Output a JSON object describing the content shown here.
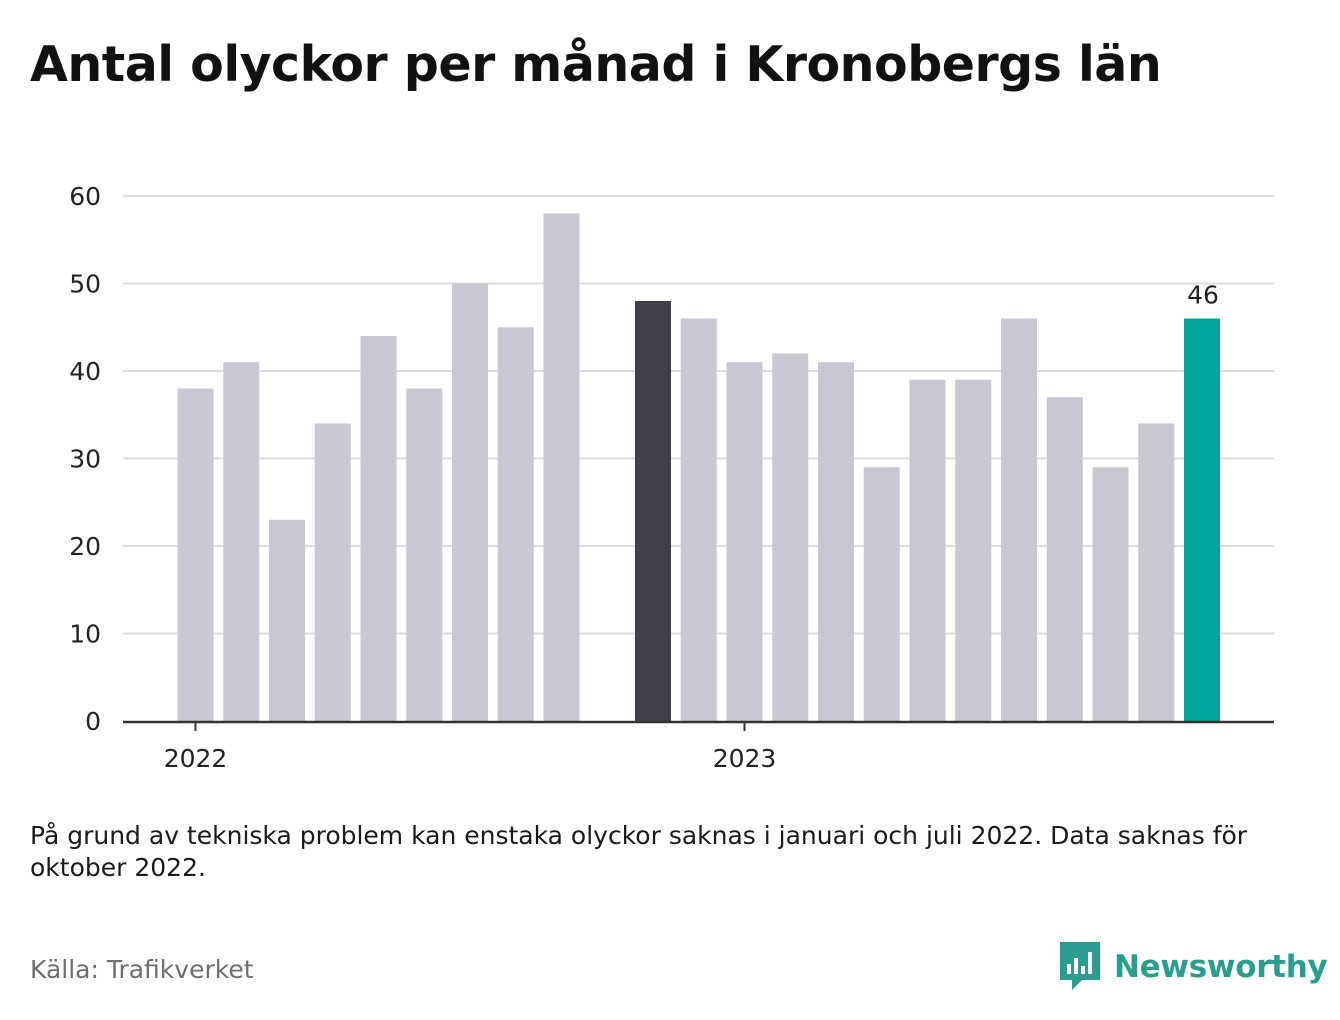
{
  "title": "Antal olyckor per månad i Kronobergs län",
  "note": "På grund av tekniska problem kan enstaka olyckor saknas i januari och juli 2022. Data saknas för oktober 2022.",
  "source": "Källa: Trafikverket",
  "brand": {
    "name": "Newsworthy",
    "icon": "newsworthy-logo-icon"
  },
  "colors": {
    "bar": "#c9c7d2",
    "highlight_previous_year": "#41404d",
    "highlight_latest": "#00a49a",
    "grid": "#dcdcdc",
    "axis": "#333333",
    "brand": "#2a9d8f"
  },
  "chart_data": {
    "type": "bar",
    "title": "Antal olyckor per månad i Kronobergs län",
    "categories": [
      "2022-01",
      "2022-02",
      "2022-03",
      "2022-04",
      "2022-05",
      "2022-06",
      "2022-07",
      "2022-08",
      "2022-09",
      "2022-10",
      "2022-11",
      "2022-12",
      "2023-01",
      "2023-02",
      "2023-03",
      "2023-04",
      "2023-05",
      "2023-06",
      "2023-07",
      "2023-08",
      "2023-09",
      "2023-10",
      "2023-11",
      "2023-12"
    ],
    "values": [
      38,
      41,
      23,
      34,
      44,
      38,
      50,
      45,
      58,
      null,
      48,
      46,
      41,
      42,
      41,
      29,
      39,
      39,
      46,
      37,
      29,
      34,
      46,
      null
    ],
    "highlight": {
      "previous_year_same_month_index": 10,
      "latest_index": 22
    },
    "data_labels": [
      {
        "index": 22,
        "text": "46"
      }
    ],
    "yticks": [
      0,
      10,
      20,
      30,
      40,
      50,
      60
    ],
    "ylim": [
      0,
      60
    ],
    "xticks": [
      {
        "index": 0,
        "label": "2022"
      },
      {
        "index": 12,
        "label": "2023"
      }
    ],
    "grid": true,
    "legend": "none",
    "xlabel": "",
    "ylabel": ""
  }
}
